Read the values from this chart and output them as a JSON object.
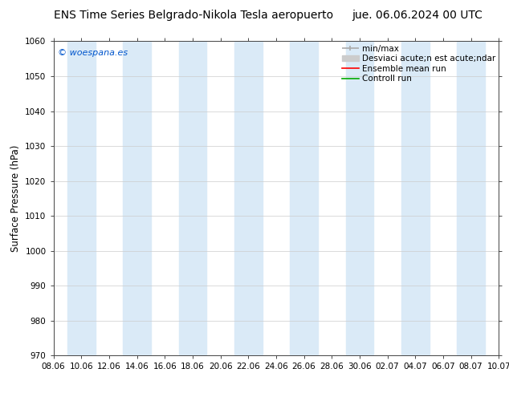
{
  "title_left": "ENS Time Series Belgrado-Nikola Tesla aeropuerto",
  "title_right": "jue. 06.06.2024 00 UTC",
  "ylabel": "Surface Pressure (hPa)",
  "watermark": "© woespana.es",
  "ylim": [
    970,
    1060
  ],
  "yticks": [
    970,
    980,
    990,
    1000,
    1010,
    1020,
    1030,
    1040,
    1050,
    1060
  ],
  "xtick_labels": [
    "08.06",
    "10.06",
    "12.06",
    "14.06",
    "16.06",
    "18.06",
    "20.06",
    "22.06",
    "24.06",
    "26.06",
    "28.06",
    "30.06",
    "02.07",
    "04.07",
    "06.07",
    "08.07",
    "10.07"
  ],
  "n_xticks": 17,
  "background_color": "#ffffff",
  "plot_bg_color": "#ffffff",
  "shaded_columns_color": "#daeaf7",
  "shaded_column_indices": [
    1,
    3,
    5,
    7,
    9,
    11,
    13,
    15
  ],
  "legend_labels": [
    "min/max",
    "Desviaci acute;n est acute;ndar",
    "Ensemble mean run",
    "Controll run"
  ],
  "legend_minmax_color": "#aaaaaa",
  "legend_desv_color": "#cccccc",
  "legend_ensemble_color": "#ff0000",
  "legend_control_color": "#00aa00",
  "title_fontsize": 10,
  "tick_fontsize": 7.5,
  "ylabel_fontsize": 8.5,
  "watermark_color": "#0055cc",
  "legend_fontsize": 7.5
}
